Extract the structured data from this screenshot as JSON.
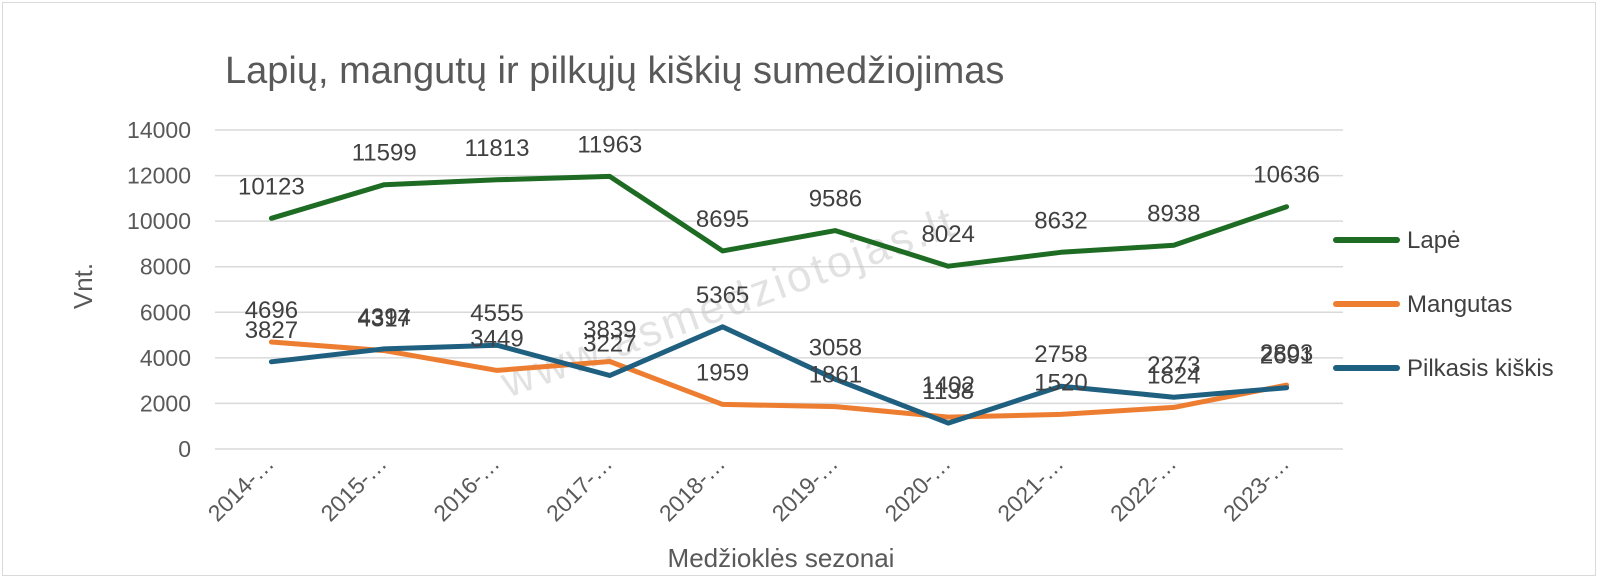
{
  "chart_data": {
    "type": "line",
    "title": "Lapių, mangutų ir pilkųjų kiškių sumedžiojimas",
    "xlabel": "Medžioklės sezonai",
    "ylabel": "Vnt.",
    "categories": [
      "2014-…",
      "2015-…",
      "2016-…",
      "2017-…",
      "2018-…",
      "2019-…",
      "2020-…",
      "2021-…",
      "2022-…",
      "2023-…"
    ],
    "ylim": [
      0,
      14000
    ],
    "yticks": [
      0,
      2000,
      4000,
      6000,
      8000,
      10000,
      12000,
      14000
    ],
    "grid": true,
    "legend_position": "right",
    "series": [
      {
        "name": "Lapė",
        "color": "#1e6b23",
        "values": [
          10123,
          11599,
          11813,
          11963,
          8695,
          9586,
          8024,
          8632,
          8938,
          10636
        ]
      },
      {
        "name": "Mangutas",
        "color": "#ed7d31",
        "values": [
          4696,
          4317,
          3449,
          3839,
          1959,
          1861,
          1402,
          1520,
          1824,
          2803
        ]
      },
      {
        "name": "Pilkasis kiškis",
        "color": "#1f5f7f",
        "values": [
          3827,
          4394,
          4555,
          3227,
          5365,
          3058,
          1138,
          2758,
          2273,
          2691
        ]
      }
    ],
    "watermark": "www.asmedziotojas.lt"
  }
}
